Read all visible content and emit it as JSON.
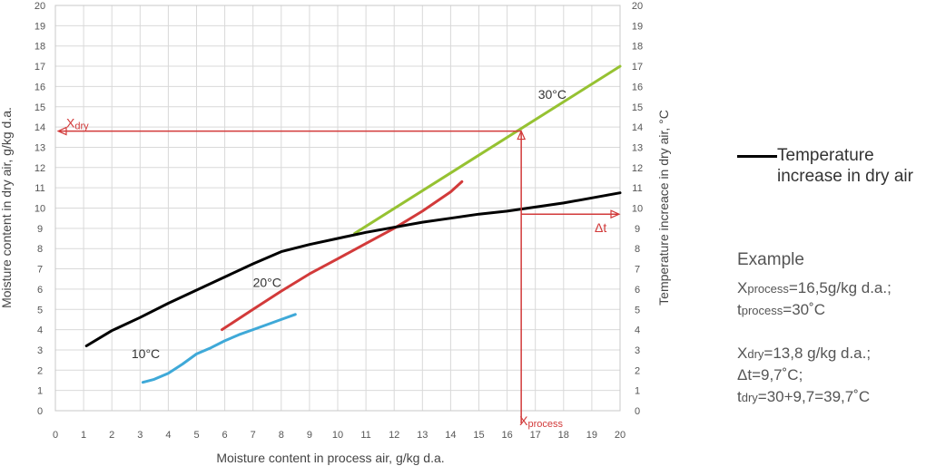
{
  "chart_data": {
    "type": "line",
    "xlabel": "Moisture content in process air, g/kg d.a.",
    "ylabel_left": "Moisture content in dry air, g/kg d.a.",
    "ylabel_right": "Temperature increace in dry air, °C",
    "xlim": [
      0,
      20
    ],
    "ylim": [
      0,
      20
    ],
    "grid": true,
    "x_ticks": [
      "0",
      "1",
      "2",
      "3",
      "4",
      "5",
      "6",
      "7",
      "8",
      "9",
      "10",
      "11",
      "12",
      "13",
      "14",
      "15",
      "16",
      "17",
      "18",
      "19",
      "20"
    ],
    "y_ticks": [
      "0",
      "1",
      "2",
      "3",
      "4",
      "5",
      "6",
      "7",
      "8",
      "9",
      "10",
      "11",
      "12",
      "13",
      "14",
      "15",
      "16",
      "17",
      "18",
      "19",
      "20"
    ],
    "series": [
      {
        "name": "10°C",
        "color": "#3fa9d8",
        "label_at": [
          3.2,
          2.6
        ],
        "x": [
          3.1,
          3.5,
          4.0,
          4.5,
          5.0,
          5.5,
          6.0,
          6.5,
          7.0,
          7.5,
          8.0,
          8.5
        ],
        "y": [
          1.4,
          1.55,
          1.85,
          2.3,
          2.8,
          3.1,
          3.45,
          3.75,
          4.0,
          4.25,
          4.5,
          4.75
        ]
      },
      {
        "name": "20°C",
        "color": "#d23a3a",
        "label_at": [
          7.5,
          6.1
        ],
        "x": [
          5.9,
          7,
          8,
          9,
          10,
          11,
          12,
          13,
          14,
          14.4
        ],
        "y": [
          4.0,
          5.0,
          5.9,
          6.75,
          7.5,
          8.25,
          9.0,
          9.85,
          10.8,
          11.3
        ]
      },
      {
        "name": "30°C",
        "color": "#96c232",
        "label_at": [
          17.6,
          15.4
        ],
        "x": [
          10.6,
          20
        ],
        "y": [
          8.75,
          17.0
        ]
      },
      {
        "name": "Temperature increase in dry air",
        "color": "#000000",
        "x": [
          1.1,
          2,
          3,
          4,
          5,
          6,
          7,
          8,
          9,
          10,
          11,
          12,
          13,
          14,
          15,
          16,
          17,
          18,
          19,
          20
        ],
        "y": [
          3.2,
          3.95,
          4.6,
          5.3,
          5.95,
          6.6,
          7.25,
          7.85,
          8.2,
          8.5,
          8.8,
          9.05,
          9.3,
          9.5,
          9.7,
          9.85,
          10.05,
          10.25,
          10.5,
          10.75
        ]
      }
    ],
    "annotations": {
      "x_process": 16.5,
      "x_dry": 13.8,
      "delta_t": 9.7,
      "x_dry_label_main": "X",
      "x_dry_label_sub": "dry",
      "x_process_label_main": "X",
      "x_process_label_sub": "process",
      "delta_t_label": "Δt",
      "color": "#d23a3a"
    }
  },
  "legend": {
    "text": "Temperature increase in dry air",
    "color": "#000000"
  },
  "example": {
    "title": "Example",
    "line1_main": "X",
    "line1_sub": "process",
    "line1_rest": "=16,5g/kg d.a.;",
    "line2_main": "t",
    "line2_sub": "process",
    "line2_rest": "=30˚C",
    "line3_main": "X",
    "line3_sub": "dry",
    "line3_rest": "=13,8 g/kg d.a.;",
    "line4": "Δt=9,7˚C;",
    "line5_main": "t",
    "line5_sub": "dry",
    "line5_rest": "=30+9,7=39,7˚C"
  }
}
